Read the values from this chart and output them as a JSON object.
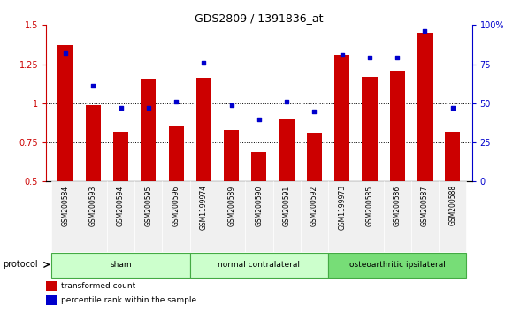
{
  "title": "GDS2809 / 1391836_at",
  "samples": [
    "GSM200584",
    "GSM200593",
    "GSM200594",
    "GSM200595",
    "GSM200596",
    "GSM1199974",
    "GSM200589",
    "GSM200590",
    "GSM200591",
    "GSM200592",
    "GSM1199973",
    "GSM200585",
    "GSM200586",
    "GSM200587",
    "GSM200588"
  ],
  "red_values": [
    1.37,
    0.99,
    0.82,
    1.16,
    0.86,
    1.165,
    0.83,
    0.69,
    0.9,
    0.81,
    1.31,
    1.17,
    1.21,
    1.45,
    0.82
  ],
  "blue_percentiles": [
    82,
    61,
    47,
    47,
    51,
    76,
    49,
    40,
    51,
    45,
    81,
    79,
    79,
    96,
    47
  ],
  "red_color": "#cc0000",
  "blue_color": "#0000cc",
  "ylim_left": [
    0.5,
    1.5
  ],
  "ylim_right": [
    0,
    100
  ],
  "yticks_left": [
    0.5,
    0.75,
    1.0,
    1.25,
    1.5
  ],
  "yticks_right": [
    0,
    25,
    50,
    75,
    100
  ],
  "group_defs": [
    {
      "start": 0,
      "end": 4,
      "color": "#ccffcc",
      "label": "sham"
    },
    {
      "start": 5,
      "end": 9,
      "color": "#ccffcc",
      "label": "normal contralateral"
    },
    {
      "start": 10,
      "end": 14,
      "color": "#77dd77",
      "label": "osteoarthritic ipsilateral"
    }
  ],
  "protocol_label": "protocol",
  "legend_red": "transformed count",
  "legend_blue": "percentile rank within the sample",
  "bar_width": 0.55,
  "bg_color": "#f0f0f0"
}
